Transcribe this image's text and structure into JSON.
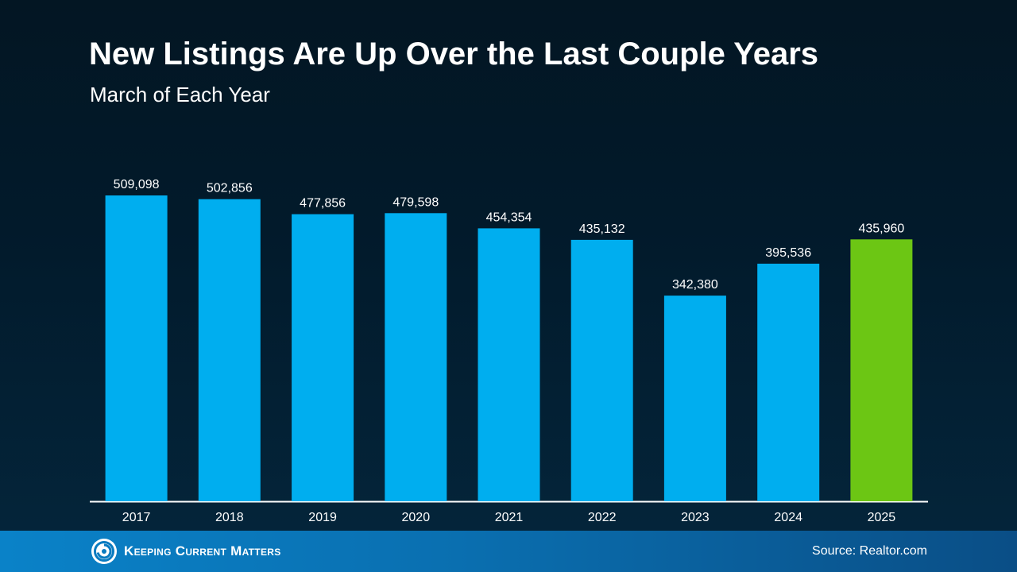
{
  "chart_data": {
    "type": "bar",
    "title": "New Listings Are Up Over the Last Couple Years",
    "subtitle": "March of Each Year",
    "categories": [
      "2017",
      "2018",
      "2019",
      "2020",
      "2021",
      "2022",
      "2023",
      "2024",
      "2025"
    ],
    "values": [
      509098,
      502856,
      477856,
      479598,
      454354,
      435132,
      342380,
      395536,
      435960
    ],
    "value_labels": [
      "509,098",
      "502,856",
      "477,856",
      "479,598",
      "454,354",
      "435,132",
      "342,380",
      "395,536",
      "435,960"
    ],
    "ylim": [
      0,
      509098
    ],
    "xlabel": "",
    "ylabel": "",
    "grid": false,
    "legend": "none",
    "colors": {
      "default_bar": "#00aeef",
      "highlight_bar": "#6cc614",
      "axis_line": "#ffffff",
      "label_text": "#ffffff"
    },
    "highlight_index": 8
  },
  "footer": {
    "logo_text": "Keeping Current Matters",
    "logo_icon": "spiral-logo-icon",
    "source": "Source: Realtor.com"
  }
}
